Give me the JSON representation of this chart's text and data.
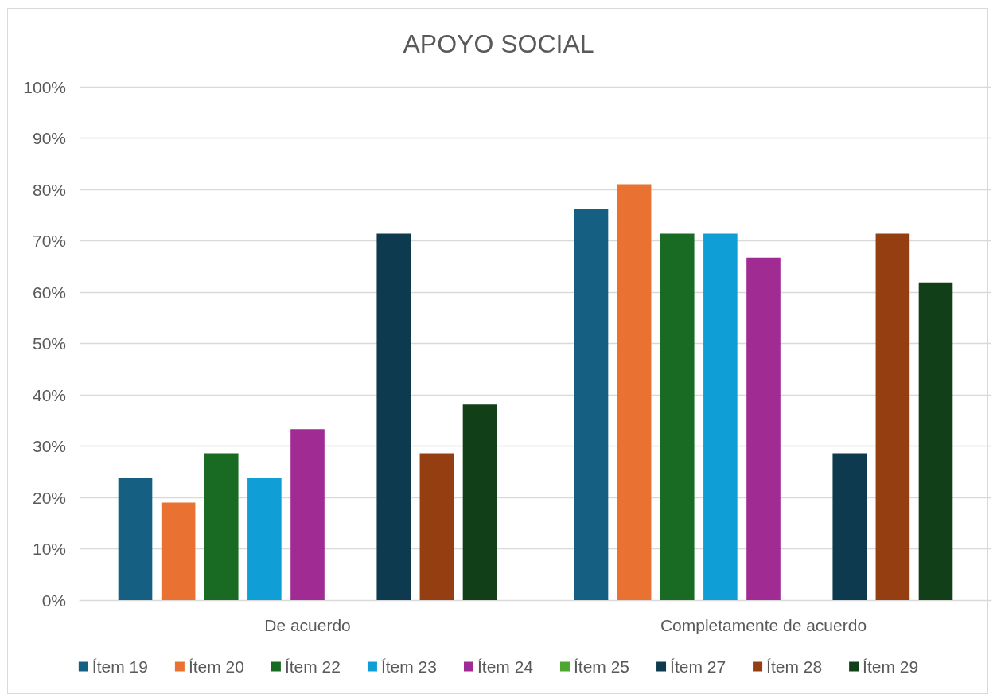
{
  "chart_data": {
    "type": "bar",
    "title": "APOYO SOCIAL",
    "categories": [
      "De acuerdo",
      "Completamente de acuerdo"
    ],
    "series": [
      {
        "name": "Ítem 19",
        "color": "#156082",
        "values": [
          23.8,
          76.2
        ]
      },
      {
        "name": "Ítem 20",
        "color": "#e97132",
        "values": [
          19.0,
          81.0
        ]
      },
      {
        "name": "Ítem 22",
        "color": "#196b24",
        "values": [
          28.6,
          71.4
        ]
      },
      {
        "name": "Ítem 23",
        "color": "#0f9ed5",
        "values": [
          23.8,
          71.4
        ]
      },
      {
        "name": "Ítem 24",
        "color": "#a02b93",
        "values": [
          33.3,
          66.7
        ]
      },
      {
        "name": "Ítem 25",
        "color": "#4ea72e",
        "values": [
          null,
          null
        ]
      },
      {
        "name": "Ítem 27",
        "color": "#0e3a4f",
        "values": [
          71.4,
          28.6
        ]
      },
      {
        "name": "Ítem 28",
        "color": "#953e11",
        "values": [
          28.6,
          71.4
        ]
      },
      {
        "name": "Ítem 29",
        "color": "#113f17",
        "values": [
          38.1,
          61.9
        ]
      }
    ],
    "ylim": [
      0,
      100
    ],
    "yticks": [
      {
        "value": 0,
        "label": "0%"
      },
      {
        "value": 10,
        "label": "10%"
      },
      {
        "value": 20,
        "label": "20%"
      },
      {
        "value": 30,
        "label": "30%"
      },
      {
        "value": 40,
        "label": "40%"
      },
      {
        "value": 50,
        "label": "50%"
      },
      {
        "value": 60,
        "label": "60%"
      },
      {
        "value": 70,
        "label": "70%"
      },
      {
        "value": 80,
        "label": "80%"
      },
      {
        "value": 90,
        "label": "90%"
      },
      {
        "value": 100,
        "label": "100%"
      }
    ],
    "grid": "y",
    "legend": "bottom"
  }
}
